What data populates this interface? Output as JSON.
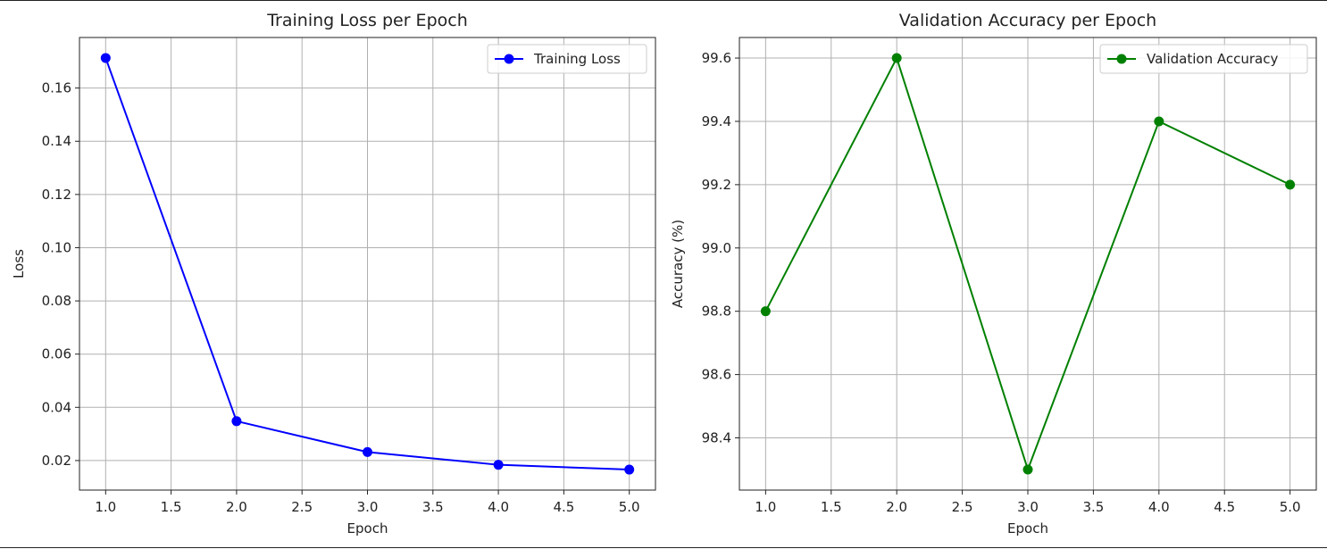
{
  "chart_data": [
    {
      "type": "line",
      "title": "Training Loss per Epoch",
      "xlabel": "Epoch",
      "ylabel": "Loss",
      "x": [
        1,
        2,
        3,
        4,
        5
      ],
      "series": [
        {
          "name": "Training Loss",
          "values": [
            0.1713,
            0.0348,
            0.0232,
            0.0184,
            0.0166
          ],
          "color": "#0000ff",
          "marker": "circle"
        }
      ],
      "xlim": [
        0.8,
        5.2
      ],
      "ylim": [
        0.0089,
        0.179
      ],
      "xticks": [
        "1.0",
        "1.5",
        "2.0",
        "2.5",
        "3.0",
        "3.5",
        "4.0",
        "4.5",
        "5.0"
      ],
      "yticks": [
        "0.02",
        "0.04",
        "0.06",
        "0.08",
        "0.10",
        "0.12",
        "0.14",
        "0.16"
      ],
      "grid": true,
      "legend": "top-right"
    },
    {
      "type": "line",
      "title": "Validation Accuracy per Epoch",
      "xlabel": "Epoch",
      "ylabel": "Accuracy (%)",
      "x": [
        1,
        2,
        3,
        4,
        5
      ],
      "series": [
        {
          "name": "Validation Accuracy",
          "values": [
            98.8,
            99.6,
            98.3,
            99.4,
            99.2
          ],
          "color": "#008000",
          "marker": "circle"
        }
      ],
      "xlim": [
        0.8,
        5.2
      ],
      "ylim": [
        98.235,
        99.665
      ],
      "xticks": [
        "1.0",
        "1.5",
        "2.0",
        "2.5",
        "3.0",
        "3.5",
        "4.0",
        "4.5",
        "5.0"
      ],
      "yticks": [
        "98.4",
        "98.6",
        "98.8",
        "99.0",
        "99.2",
        "99.4",
        "99.6"
      ],
      "grid": true,
      "legend": "top-right"
    }
  ]
}
